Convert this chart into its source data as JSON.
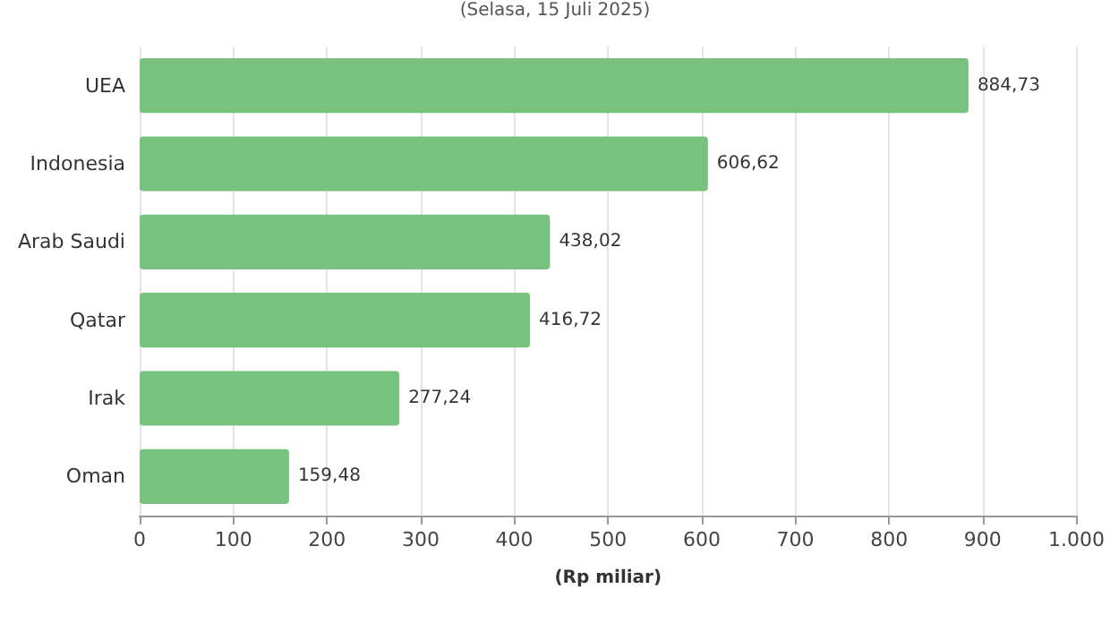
{
  "chart_data": {
    "type": "bar",
    "orientation": "horizontal",
    "subtitle": "(Selasa, 15 Juli 2025)",
    "xlabel": "(Rp miliar)",
    "categories": [
      "UEA",
      "Indonesia",
      "Arab Saudi",
      "Qatar",
      "Irak",
      "Oman"
    ],
    "values": [
      884.73,
      606.62,
      438.02,
      416.72,
      277.24,
      159.48
    ],
    "value_labels": [
      "884,73",
      "606,62",
      "438,02",
      "416,72",
      "277,24",
      "159,48"
    ],
    "color": "#78c17f",
    "xlim": [
      0,
      1000
    ],
    "xticks": [
      0,
      100,
      200,
      300,
      400,
      500,
      600,
      700,
      800,
      900,
      {
        "value": 1000,
        "label": "1.000"
      }
    ],
    "grid": "x"
  }
}
